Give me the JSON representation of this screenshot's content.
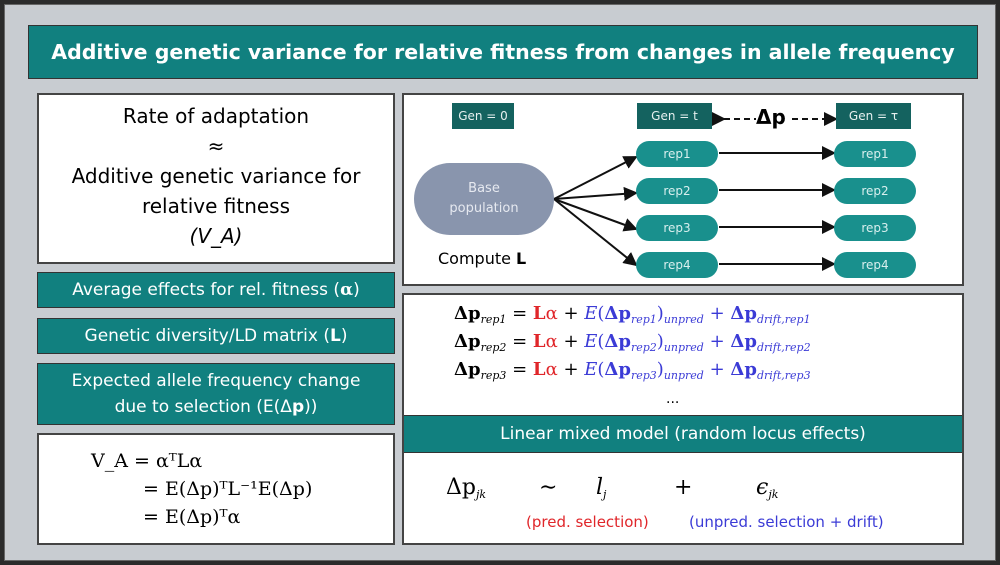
{
  "title": "Additive genetic variance for relative fitness from changes in allele frequency",
  "left": {
    "box1": [
      "Rate of adaptation",
      "≈",
      "Additive genetic variance for",
      "relative fitness",
      "(V_A)"
    ],
    "box1_va": {
      "open": "(",
      "var": "V",
      "sub": "A",
      "close": ")"
    },
    "average_effects": {
      "text": "Average effects for rel. fitness (",
      "sym": "α",
      "close": ")"
    },
    "ld_matrix": {
      "text": "Genetic diversity/LD matrix (",
      "sym": "L",
      "close": ")"
    },
    "expected_change": {
      "line1": "Expected allele frequency change",
      "line2": "due to selection (E(Δ",
      "sym": "p",
      "close": "))"
    },
    "va_equations": [
      "V_A = αᵀLα",
      "= E(Δp)ᵀL⁻¹E(Δp)",
      "= E(Δp)ᵀα"
    ]
  },
  "diagram": {
    "gen0": "Gen = 0",
    "gen_t": "Gen = t",
    "gen_tau": "Gen = τ",
    "delta_p": "Δp",
    "base": [
      "Base",
      "population"
    ],
    "compute": "Compute ",
    "compute_sym": "L",
    "reps": [
      "rep1",
      "rep2",
      "rep3",
      "rep4"
    ]
  },
  "equations": {
    "rows": [
      "rep1",
      "rep2",
      "rep3"
    ],
    "ellipsis": "...",
    "lmm_title": "Linear mixed model (random locus effects)",
    "lmm": {
      "lhs": "Δp",
      "lhs_sub": "jk",
      "tilde": "∼",
      "l": "l",
      "l_sub": "j",
      "plus": "+",
      "eps": "ϵ",
      "eps_sub": "jk",
      "pred": "(pred. selection)",
      "unpred": "(unpred. selection + drift)"
    }
  },
  "colors": {
    "teal": "#11807f",
    "red": "#e0262a",
    "blue": "#3b3bd6"
  }
}
